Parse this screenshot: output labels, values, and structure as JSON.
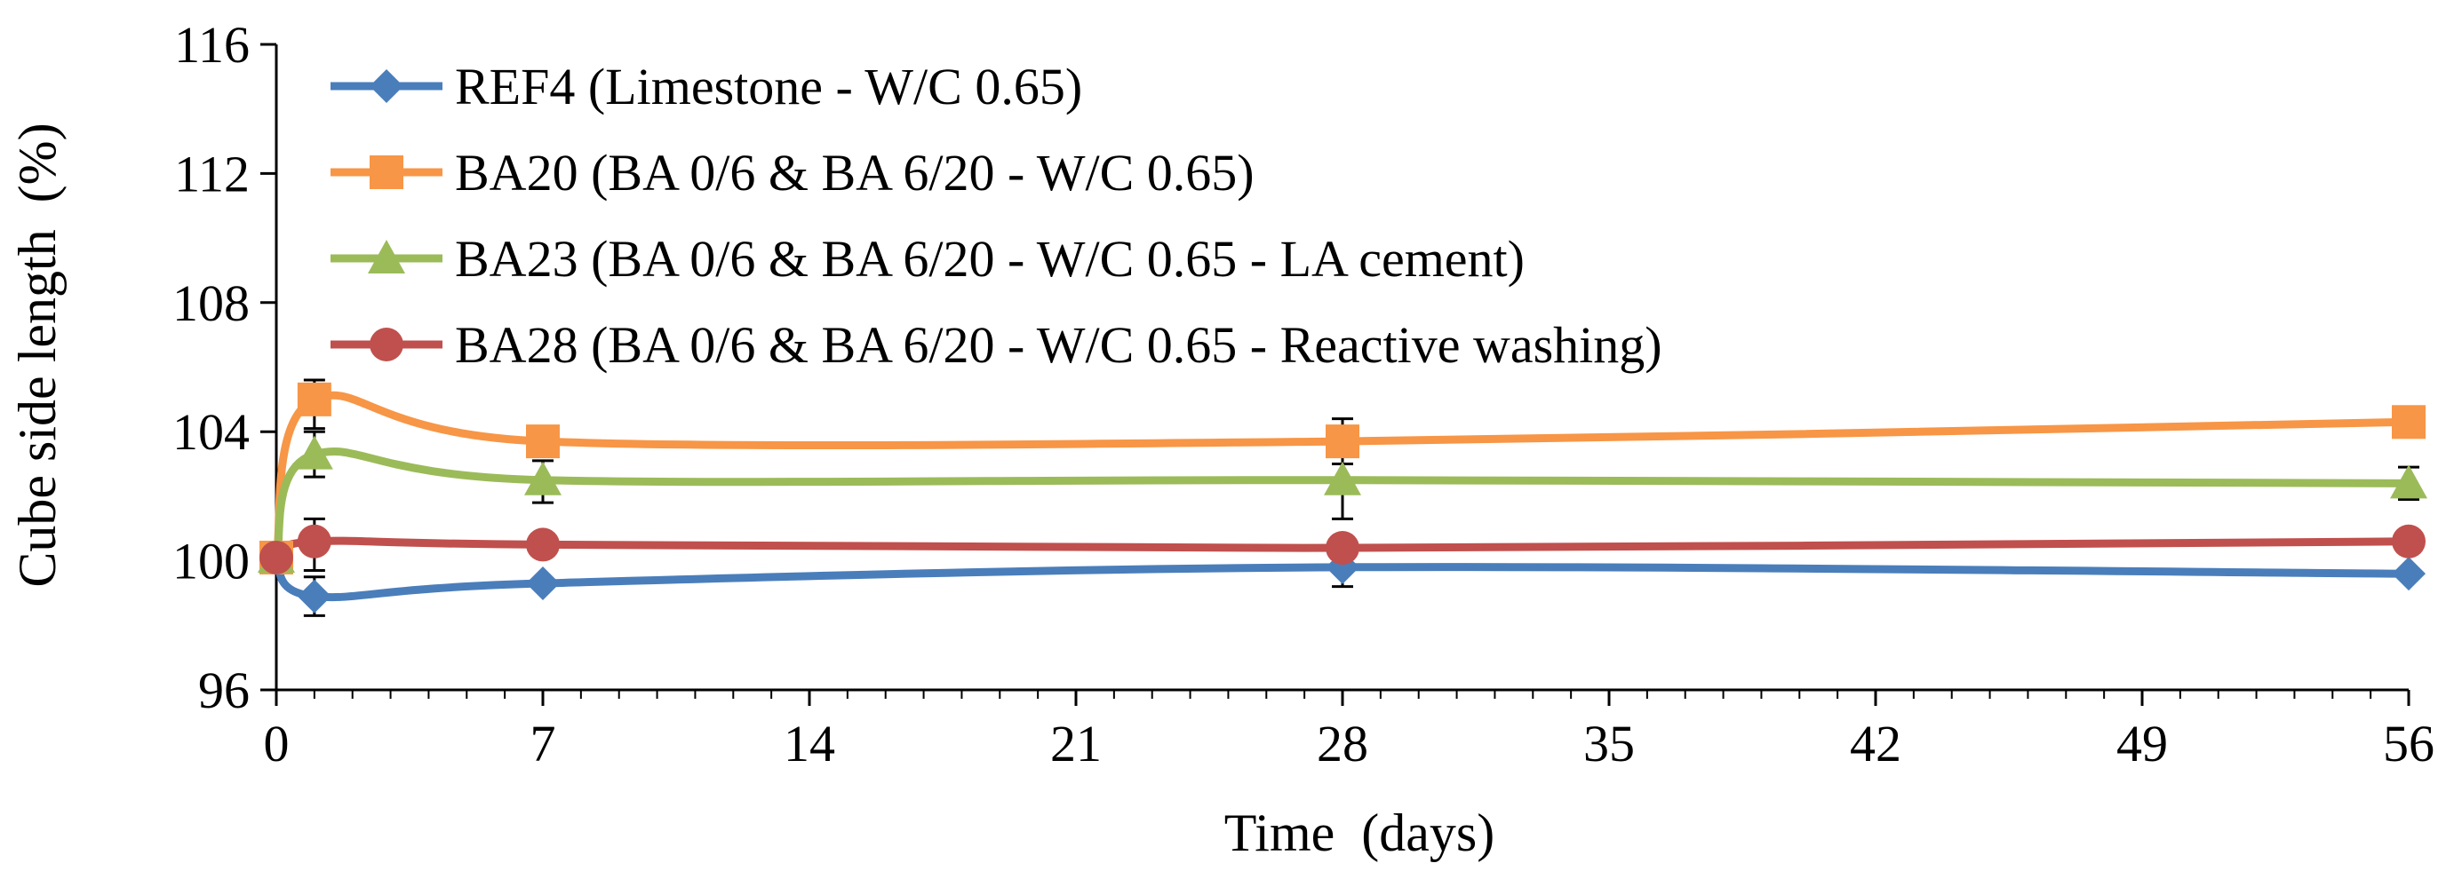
{
  "chart_data": {
    "type": "line",
    "title": "",
    "xlabel": "Time  (days)",
    "ylabel": "Cube side length  (%)",
    "xlim": [
      0,
      56
    ],
    "ylim": [
      96,
      116
    ],
    "x_ticks": [
      0,
      7,
      14,
      21,
      28,
      35,
      42,
      49,
      56
    ],
    "x_minor_step": 1,
    "y_ticks": [
      96,
      100,
      104,
      108,
      112,
      116
    ],
    "grid": false,
    "legend_position": "top-left",
    "smooth": true,
    "x": [
      0,
      1,
      7,
      28,
      56
    ],
    "series": [
      {
        "name": "REF4 (Limestone - W/C 0.65)",
        "color": "#4a7ebb",
        "marker": "diamond",
        "values": [
          100.1,
          98.9,
          99.3,
          99.8,
          99.6
        ],
        "error_bars": [
          {
            "x": 1,
            "low": 98.3,
            "high": 99.5
          },
          {
            "x": 28,
            "low": 99.2,
            "high": 100.3
          }
        ]
      },
      {
        "name": "BA20 (BA 0/6 & BA 6/20 - W/C 0.65)",
        "color": "#f79646",
        "marker": "square",
        "values": [
          100.1,
          105.0,
          103.7,
          103.7,
          104.3
        ],
        "error_bars": [
          {
            "x": 1,
            "low": 104.1,
            "high": 105.6
          },
          {
            "x": 28,
            "low": 103.0,
            "high": 104.4
          }
        ]
      },
      {
        "name": "BA23 (BA 0/6 & BA 6/20 - W/C 0.65 - LA cement)",
        "color": "#9bbb59",
        "marker": "triangle",
        "values": [
          100.1,
          103.3,
          102.5,
          102.5,
          102.4
        ],
        "error_bars": [
          {
            "x": 1,
            "low": 102.6,
            "high": 104.0
          },
          {
            "x": 7,
            "low": 101.8,
            "high": 103.1
          },
          {
            "x": 28,
            "low": 101.3,
            "high": 103.7
          },
          {
            "x": 56,
            "low": 101.9,
            "high": 102.9
          }
        ]
      },
      {
        "name": "BA28 (BA 0/6 & BA 6/20 - W/C 0.65 - Reactive washing)",
        "color": "#c0504d",
        "marker": "circle",
        "values": [
          100.1,
          100.6,
          100.5,
          100.4,
          100.6
        ],
        "error_bars": [
          {
            "x": 1,
            "low": 99.7,
            "high": 101.3
          }
        ]
      }
    ]
  }
}
